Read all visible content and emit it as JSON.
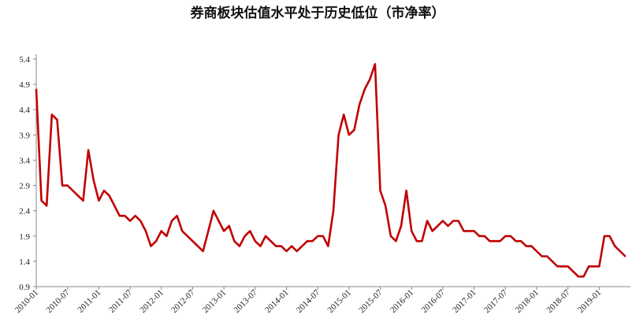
{
  "chart_data": {
    "type": "line",
    "title": "券商板块估值水平处于历史低位（市净率）",
    "xlabel": "",
    "ylabel": "",
    "ylim": [
      0.9,
      5.4
    ],
    "yticks": [
      "5.4",
      "4.9",
      "4.4",
      "3.9",
      "3.4",
      "2.9",
      "2.4",
      "1.9",
      "1.4",
      "0.9"
    ],
    "xticks": [
      "2010-01",
      "2010-07",
      "2011-01",
      "2011-07",
      "2012-01",
      "2012-07",
      "2013-01",
      "2013-07",
      "2014-01",
      "2014-07",
      "2015-01",
      "2015-07",
      "2016-01",
      "2016-07",
      "2017-01",
      "2017-07",
      "2018-01",
      "2018-07",
      "2019-01"
    ],
    "grid": false,
    "legend": "none",
    "line_color": "#c00000",
    "series": [
      {
        "x": [
          "2010-01",
          "2010-02",
          "2010-03",
          "2010-04",
          "2010-05",
          "2010-06",
          "2010-07",
          "2010-08",
          "2010-09",
          "2010-10",
          "2010-11",
          "2010-12",
          "2011-01",
          "2011-02",
          "2011-03",
          "2011-04",
          "2011-05",
          "2011-06",
          "2011-07",
          "2011-08",
          "2011-09",
          "2011-10",
          "2011-11",
          "2011-12",
          "2012-01",
          "2012-02",
          "2012-03",
          "2012-04",
          "2012-05",
          "2012-06",
          "2012-07",
          "2012-08",
          "2012-09",
          "2012-10",
          "2012-11",
          "2012-12",
          "2013-01",
          "2013-02",
          "2013-03",
          "2013-04",
          "2013-05",
          "2013-06",
          "2013-07",
          "2013-08",
          "2013-09",
          "2013-10",
          "2013-11",
          "2013-12",
          "2014-01",
          "2014-02",
          "2014-03",
          "2014-04",
          "2014-05",
          "2014-06",
          "2014-07",
          "2014-08",
          "2014-09",
          "2014-10",
          "2014-11",
          "2014-12",
          "2015-01",
          "2015-02",
          "2015-03",
          "2015-04",
          "2015-05",
          "2015-06",
          "2015-07",
          "2015-08",
          "2015-09",
          "2015-10",
          "2015-11",
          "2015-12",
          "2016-01",
          "2016-02",
          "2016-03",
          "2016-04",
          "2016-05",
          "2016-06",
          "2016-07",
          "2016-08",
          "2016-09",
          "2016-10",
          "2016-11",
          "2016-12",
          "2017-01",
          "2017-02",
          "2017-03",
          "2017-04",
          "2017-05",
          "2017-06",
          "2017-07",
          "2017-08",
          "2017-09",
          "2017-10",
          "2017-11",
          "2017-12",
          "2018-01",
          "2018-02",
          "2018-03",
          "2018-04",
          "2018-05",
          "2018-06",
          "2018-07",
          "2018-08",
          "2018-09",
          "2018-10",
          "2018-11",
          "2018-12",
          "2019-01",
          "2019-02",
          "2019-03",
          "2019-04",
          "2019-05",
          "2019-06"
        ],
        "values": [
          4.8,
          2.6,
          2.5,
          4.3,
          4.2,
          2.9,
          2.9,
          2.8,
          2.7,
          2.6,
          3.6,
          3.0,
          2.6,
          2.8,
          2.7,
          2.5,
          2.3,
          2.3,
          2.2,
          2.3,
          2.2,
          2.0,
          1.7,
          1.8,
          2.0,
          1.9,
          2.2,
          2.3,
          2.0,
          1.9,
          1.8,
          1.7,
          1.6,
          2.0,
          2.4,
          2.2,
          2.0,
          2.1,
          1.8,
          1.7,
          1.9,
          2.0,
          1.8,
          1.7,
          1.9,
          1.8,
          1.7,
          1.7,
          1.6,
          1.7,
          1.6,
          1.7,
          1.8,
          1.8,
          1.9,
          1.9,
          1.7,
          2.4,
          3.9,
          4.3,
          3.9,
          4.0,
          4.5,
          4.8,
          5.0,
          5.3,
          2.8,
          2.5,
          1.9,
          1.8,
          2.1,
          2.8,
          2.0,
          1.8,
          1.8,
          2.2,
          2.0,
          2.1,
          2.2,
          2.1,
          2.2,
          2.2,
          2.0,
          2.0,
          2.0,
          1.9,
          1.9,
          1.8,
          1.8,
          1.8,
          1.9,
          1.9,
          1.8,
          1.8,
          1.7,
          1.7,
          1.6,
          1.5,
          1.5,
          1.4,
          1.3,
          1.3,
          1.3,
          1.2,
          1.1,
          1.1,
          1.3,
          1.3,
          1.3,
          1.9,
          1.9,
          1.7,
          1.6,
          1.5
        ]
      }
    ]
  }
}
